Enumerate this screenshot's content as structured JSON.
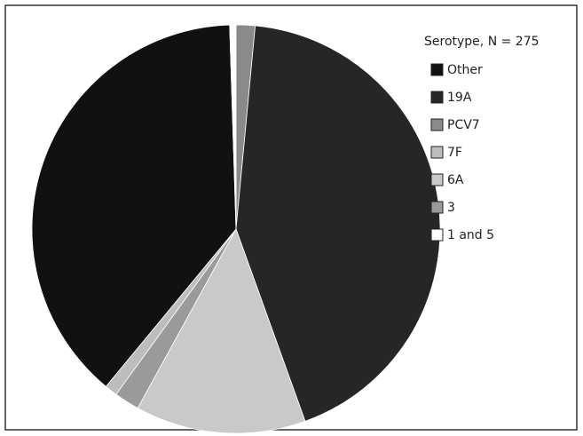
{
  "chart_data": {
    "type": "pie",
    "legend_title": "Serotype, N = 275",
    "categories": [
      "Other",
      "19A",
      "PCV7",
      "7F",
      "6A",
      "3",
      "1 and 5"
    ],
    "values": [
      38.5,
      43,
      1.5,
      1,
      13.5,
      2,
      0.5
    ],
    "colors": [
      "#111111",
      "#262626",
      "#8a8a8a",
      "#bdbdbd",
      "#c9c9c9",
      "#9a9a9a",
      "#ffffff"
    ],
    "legend": "upper right"
  }
}
